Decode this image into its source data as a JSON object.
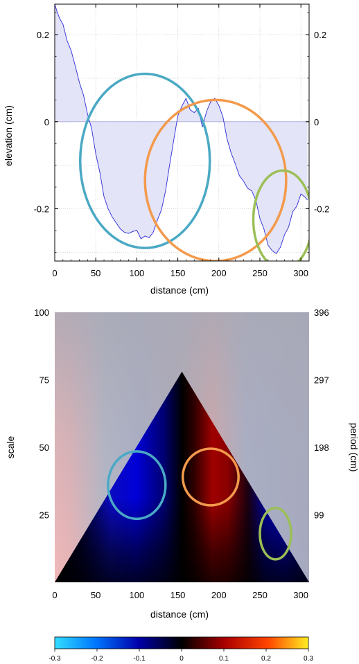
{
  "chart_data": [
    {
      "type": "area",
      "title": "",
      "xlabel": "distance (cm)",
      "ylabel": "elevation (cm)",
      "xlim": [
        0,
        310
      ],
      "ylim": [
        -0.32,
        0.27
      ],
      "grid": true,
      "right_axis": true,
      "xticks": [
        0,
        50,
        100,
        150,
        200,
        250,
        300
      ],
      "yticks": [
        -0.2,
        0,
        0.2
      ],
      "ytick_labels": [
        "-0.2",
        "0",
        "0.2"
      ],
      "line_color": "#3b3bd9",
      "fill_color": "#e4e4f8",
      "series": [
        {
          "x": [
            0,
            3,
            6,
            10,
            15,
            20,
            25,
            30,
            35,
            40,
            45,
            50,
            55,
            60,
            65,
            70,
            75,
            80,
            85,
            90,
            95,
            100,
            105,
            110,
            115,
            120,
            125,
            130,
            135,
            140,
            145,
            150,
            155,
            160,
            165,
            170,
            175,
            180,
            185,
            190,
            195,
            200,
            205,
            210,
            215,
            220,
            225,
            230,
            235,
            240,
            245,
            250,
            255,
            260,
            265,
            270,
            275,
            280,
            285,
            290,
            295,
            300,
            305,
            308
          ],
          "y": [
            0.27,
            0.25,
            0.24,
            0.22,
            0.19,
            0.16,
            0.13,
            0.09,
            0.06,
            0.02,
            -0.02,
            -0.07,
            -0.12,
            -0.17,
            -0.2,
            -0.22,
            -0.23,
            -0.25,
            -0.25,
            -0.26,
            -0.25,
            -0.25,
            -0.27,
            -0.26,
            -0.27,
            -0.25,
            -0.23,
            -0.2,
            -0.16,
            -0.1,
            -0.04,
            0.01,
            0.04,
            0.05,
            0.03,
            0.02,
            0.03,
            -0.01,
            0.02,
            0.05,
            0.05,
            0.04,
            0.01,
            -0.04,
            -0.07,
            -0.1,
            -0.12,
            -0.14,
            -0.15,
            -0.16,
            -0.18,
            -0.22,
            -0.25,
            -0.28,
            -0.3,
            -0.3,
            -0.29,
            -0.26,
            -0.24,
            -0.21,
            -0.19,
            -0.17,
            -0.17,
            -0.18
          ]
        }
      ],
      "annotations": [
        {
          "shape": "ellipse",
          "color": "#4aa9c4",
          "cx": 110,
          "cy": -0.09,
          "rx": 79,
          "ry": 0.2
        },
        {
          "shape": "ellipse",
          "color": "#f39a4c",
          "cx": 196,
          "cy": -0.135,
          "rx": 86,
          "ry": 0.185
        },
        {
          "shape": "ellipse",
          "color": "#9bbf56",
          "cx": 278,
          "cy": -0.225,
          "rx": 36,
          "ry": 0.113
        }
      ]
    },
    {
      "type": "heatmap",
      "title": "",
      "xlabel": "distance (cm)",
      "ylabel": "scale",
      "y2label": "period (cm)",
      "xlim": [
        0,
        310
      ],
      "ylim": [
        0,
        100
      ],
      "xticks": [
        0,
        50,
        100,
        150,
        200,
        250,
        300
      ],
      "yticks": [
        25,
        50,
        75,
        100
      ],
      "ytick_labels": [
        "25",
        "50",
        "75",
        "100"
      ],
      "y2ticks": [
        25,
        50,
        75,
        100
      ],
      "y2tick_labels": [
        "99",
        "198",
        "297",
        "396"
      ],
      "cone_apex": {
        "x": 155,
        "y": 78
      },
      "colorscale": {
        "min": -0.3,
        "max": 0.3,
        "ticks": [
          "-0.3",
          "-0.2",
          "-0.1",
          "0",
          "0.1",
          "0.2",
          "0.3"
        ],
        "colors": [
          "#33ddff",
          "#0077ff",
          "#0000aa",
          "#000000",
          "#aa0000",
          "#ff4400",
          "#ffee22"
        ]
      },
      "annotations": [
        {
          "shape": "ellipse",
          "color": "#4aa9c4",
          "cx": 100,
          "cy": 36,
          "rx": 35,
          "ry": 12.5
        },
        {
          "shape": "ellipse",
          "color": "#f39a4c",
          "cx": 190,
          "cy": 39,
          "rx": 34,
          "ry": 10.5
        },
        {
          "shape": "ellipse",
          "color": "#9bbf56",
          "cx": 269,
          "cy": 18,
          "rx": 19,
          "ry": 9.5
        }
      ]
    }
  ]
}
